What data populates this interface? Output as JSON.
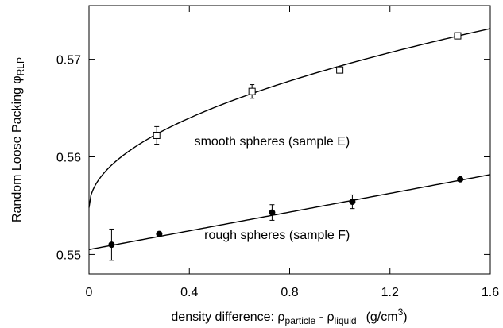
{
  "chart_data": {
    "type": "scatter",
    "xlabel": {
      "prefix": "density difference: ",
      "rho1_sym": "ρ",
      "rho1_sub": "particle",
      "minus": " - ",
      "rho2_sym": "ρ",
      "rho2_sub": "liquid",
      "units_pre": "(g/cm",
      "units_sup": "3",
      "units_post": ")"
    },
    "ylabel": {
      "text": "Random Loose Packing  ",
      "phi": "φ",
      "phi_sub": "RLP"
    },
    "xlim": [
      0,
      1.6
    ],
    "ylim": [
      0.548,
      0.5755
    ],
    "xticks": [
      {
        "value": 0,
        "label": "0"
      },
      {
        "value": 0.4,
        "label": "0.4"
      },
      {
        "value": 0.8,
        "label": "0.8"
      },
      {
        "value": 1.2,
        "label": "1.2"
      },
      {
        "value": 1.6,
        "label": "1.6"
      }
    ],
    "yticks": [
      {
        "value": 0.55,
        "label": "0.55"
      },
      {
        "value": 0.56,
        "label": "0.56"
      },
      {
        "value": 0.57,
        "label": "0.57"
      }
    ],
    "series": [
      {
        "label": "smooth spheres (sample E)",
        "marker": "open-square",
        "points": [
          {
            "x": 0.27,
            "y": 0.5622,
            "err": 0.0009
          },
          {
            "x": 0.65,
            "y": 0.5667,
            "err": 0.0007
          },
          {
            "x": 1.0,
            "y": 0.5689,
            "err": 0.0003
          },
          {
            "x": 1.47,
            "y": 0.5724,
            "err": 0.0002
          }
        ],
        "fit": {
          "model": "sqrt",
          "a": 0.5548,
          "b": 0.0145
        },
        "annotation_pos": {
          "x": 0.73,
          "y": 0.5612
        }
      },
      {
        "label": "rough spheres (sample F)",
        "marker": "filled-circle",
        "points": [
          {
            "x": 0.09,
            "y": 0.551,
            "err": 0.0016
          },
          {
            "x": 0.28,
            "y": 0.5521,
            "err": 0.0
          },
          {
            "x": 0.73,
            "y": 0.5543,
            "err": 0.0008
          },
          {
            "x": 1.05,
            "y": 0.5554,
            "err": 0.0007
          },
          {
            "x": 1.48,
            "y": 0.5577,
            "err": 0.0
          }
        ],
        "fit": {
          "model": "linear",
          "a": 0.5505,
          "b": 0.0048
        },
        "annotation_pos": {
          "x": 0.75,
          "y": 0.5516
        }
      }
    ]
  }
}
